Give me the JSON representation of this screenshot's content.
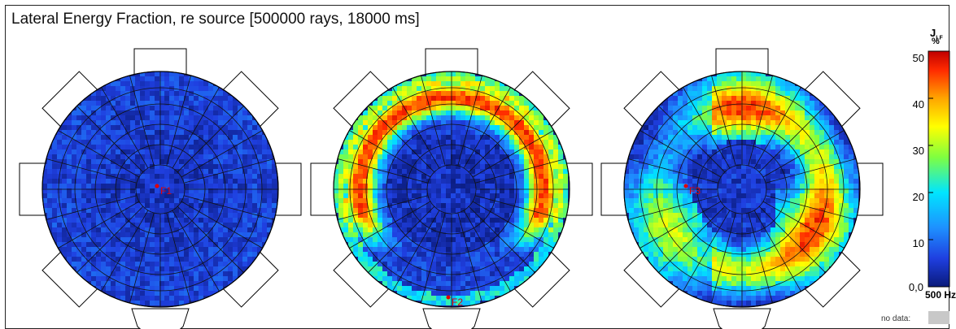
{
  "title": "Lateral Energy Fraction, re source [500000 rays, 18000 ms]",
  "legend": {
    "quantity": "J",
    "subscript": "LF",
    "unit": "%",
    "band": "500 Hz",
    "ticks": [
      "50",
      "40",
      "30",
      "20",
      "10",
      "0,0"
    ],
    "nodata_label": "no data:",
    "nodata_color": "#c8c8c8",
    "colormap": [
      "#0a1a7a",
      "#1f3fe0",
      "#1e90ff",
      "#00e5ff",
      "#7fff40",
      "#ffff00",
      "#ffa500",
      "#ff2a00",
      "#c00000"
    ],
    "range": [
      0,
      50
    ]
  },
  "chart_data": [
    {
      "type": "heatmap",
      "label": "F1",
      "field": "low",
      "source_side": "center"
    },
    {
      "type": "heatmap",
      "label": "F2",
      "field": "front",
      "source_side": "bottom"
    },
    {
      "type": "heatmap",
      "label": "F3",
      "field": "side",
      "source_side": "left"
    }
  ]
}
